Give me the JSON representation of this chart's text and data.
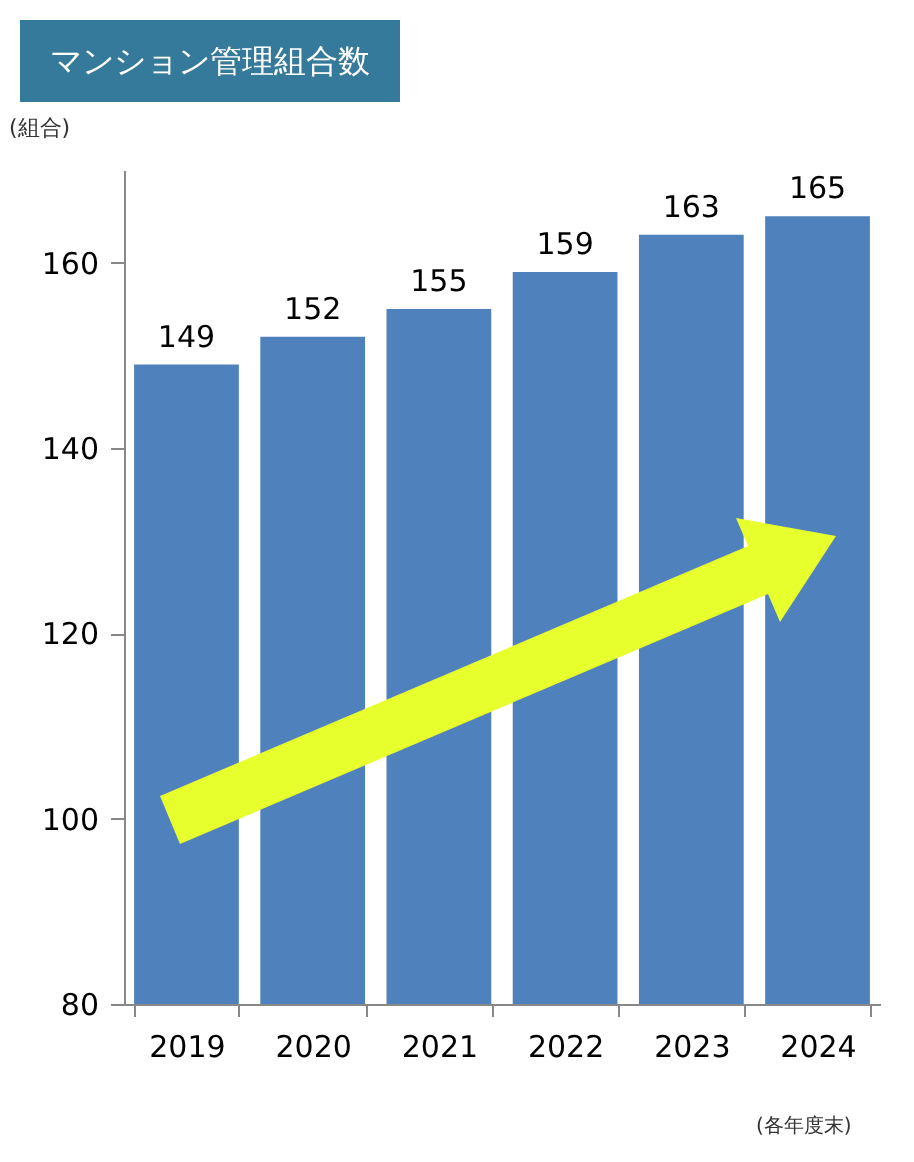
{
  "chart_data": {
    "type": "bar",
    "title": "マンション管理組合数",
    "ylabel": "(組合)",
    "categories": [
      "2019",
      "2020",
      "2021",
      "2022",
      "2023",
      "2024"
    ],
    "values": [
      149,
      152,
      155,
      159,
      163,
      165
    ],
    "color": "#4f81bd",
    "ylim": [
      80,
      170
    ],
    "yticks": [
      80,
      100,
      120,
      140,
      160
    ],
    "grid": false,
    "data_labels": true,
    "annotations": [
      "(各年度末)"
    ]
  }
}
